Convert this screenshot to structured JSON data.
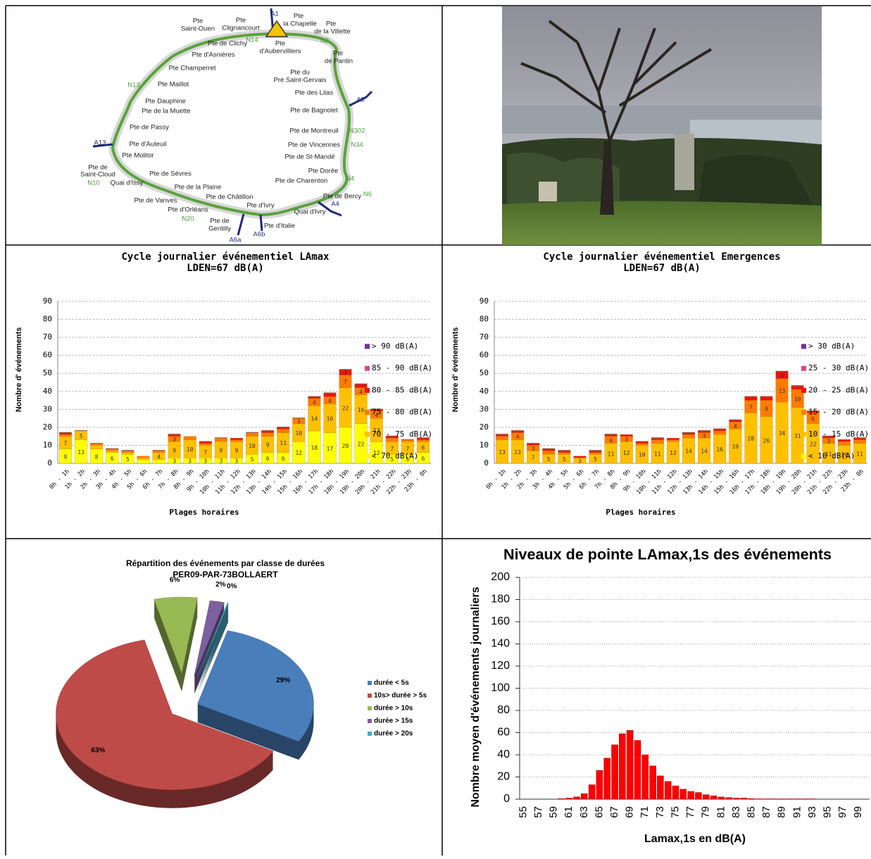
{
  "map": {
    "labels": [
      "Pte",
      "Saint-Ouen",
      "Pte",
      "Clignancourt",
      "A1",
      "Pte",
      "la Chapelle",
      "Pte",
      "de la Villette",
      "N14",
      "N2",
      "Pte de Clichy",
      "Pte",
      "d'Aubervilliers",
      "Pte",
      "de Pantin",
      "Pte d'Asnières",
      "Pte Champerret",
      "Pte du",
      "Pré Saint-Gervais",
      "N13",
      "Pte Maillot",
      "Pte des Lilas",
      "A3",
      "Pte Dauphine",
      "Pte de la Muette",
      "Pte de Bagnolet",
      "Pte de Passy",
      "Pte de Montreuil",
      "N302",
      "A13",
      "Pte d'Auteuil",
      "Pte de Vincennes",
      "N34",
      "Pte Molitor",
      "Pte de St-Mandé",
      "Pte de",
      "Saint-Cloud",
      "Pte de Sèvres",
      "Pte Dorée",
      "N10",
      "Quai d'Issy",
      "Pte de Charenton",
      "N4",
      "Pte de la Plaine",
      "Pte de Châtillon",
      "Pte de Bercy",
      "N6",
      "Pte de Vanves",
      "A4",
      "Pte d'Ivry",
      "Pte d'Orléans",
      "Quai d'Ivry",
      "N20",
      "Pte de",
      "Gentilly",
      "Pte d'Italie",
      "A6b",
      "A6a"
    ]
  },
  "chart_data": [
    {
      "type": "stacked-bar",
      "title": "Cycle journalier événementiel LAmax",
      "subtitle": "LDEN=67 dB(A)",
      "y_label": "Nombre d' événements",
      "x_label": "Plages horaires",
      "categories": [
        "0h - 1h",
        "1h - 2h",
        "2h - 3h",
        "3h - 4h",
        "4h - 5h",
        "5h - 6h",
        "6h - 7h",
        "7h - 8h",
        "8h - 9h",
        "9h - 10h",
        "10h - 11h",
        "11h - 12h",
        "12h - 13h",
        "13h - 14h",
        "14h - 15h",
        "15h - 16h",
        "16h - 17h",
        "17h - 18h",
        "18h - 19h",
        "19h - 20h",
        "20h - 21h",
        "21h - 22h",
        "22h - 23h",
        "23h - 0h"
      ],
      "series": [
        {
          "name": "< 70 dB(A)",
          "color": "#ffff00",
          "values": [
            8,
            13,
            8,
            6,
            5,
            2,
            2,
            3,
            3,
            3,
            3,
            3,
            5,
            6,
            6,
            12,
            18,
            17,
            20,
            22,
            12,
            5,
            5,
            6
          ]
        },
        {
          "name": "70 - 75 dB(A)",
          "color": "#ffc000",
          "values": [
            7,
            5,
            2,
            1,
            1,
            1,
            4,
            9,
            10,
            7,
            9,
            9,
            10,
            9,
            11,
            10,
            14,
            16,
            22,
            16,
            13,
            7,
            7,
            6
          ]
        },
        {
          "name": "75 - 80 dB(A)",
          "color": "#ff7a00",
          "values": [
            1,
            0,
            1,
            1,
            1,
            1,
            1,
            3,
            2,
            1,
            2,
            1,
            2,
            2,
            2,
            3,
            4,
            4,
            7,
            4,
            4,
            2,
            1,
            1
          ]
        },
        {
          "name": "80 - 85 dB(A)",
          "color": "#ee1111",
          "values": [
            1,
            0,
            0,
            0,
            0,
            0,
            0,
            1,
            0,
            1,
            0,
            1,
            0,
            1,
            1,
            0,
            1,
            2,
            3,
            2,
            1,
            1,
            0,
            1
          ]
        },
        {
          "name": "85 - 90 dB(A)",
          "color": "#e0408a",
          "values": [
            0,
            0,
            0,
            0,
            0,
            0,
            0,
            0,
            0,
            0,
            0,
            0,
            0,
            0,
            0,
            0,
            0,
            0,
            0,
            0,
            0,
            0,
            0,
            0
          ]
        },
        {
          "name": "> 90 dB(A)",
          "color": "#7030a0",
          "values": [
            0.3,
            0.3,
            0.3,
            0.3,
            0.3,
            0,
            0.3,
            0.3,
            0,
            0.3,
            0.3,
            0,
            0.3,
            0.3,
            0.3,
            0.3,
            0.3,
            0.3,
            0.3,
            0.3,
            0.3,
            0.3,
            0.3,
            0.3
          ]
        }
      ],
      "ylim": [
        0,
        90
      ],
      "yticks": [
        0,
        10,
        20,
        30,
        40,
        50,
        60,
        70,
        80,
        90
      ],
      "grid": true
    },
    {
      "type": "stacked-bar",
      "title": "Cycle journalier événementiel Emergences",
      "subtitle": "LDEN=67 dB(A)",
      "y_label": "Nombre d' événements",
      "x_label": "Plages horaires",
      "categories": [
        "0h - 1h",
        "1h - 2h",
        "2h - 3h",
        "3h - 4h",
        "4h - 5h",
        "5h - 6h",
        "6h - 7h",
        "7h - 8h",
        "8h - 9h",
        "9h - 10h",
        "10h - 11h",
        "11h - 12h",
        "12h - 13h",
        "13h - 14h",
        "14h - 15h",
        "15h - 16h",
        "16h - 17h",
        "17h - 18h",
        "18h - 19h",
        "19h - 20h",
        "20h - 21h",
        "21h - 22h",
        "22h - 23h",
        "23h - 0h"
      ],
      "series": [
        {
          "name": "< 10 dB(A)",
          "color": "#ffff00",
          "values": [
            0,
            0,
            0,
            0,
            0,
            0,
            0,
            0,
            0,
            0,
            0,
            0,
            0,
            0,
            0,
            0,
            0,
            0,
            0,
            0,
            0,
            0,
            0,
            0
          ]
        },
        {
          "name": "10 - 15 dB(A)",
          "color": "#ffc000",
          "values": [
            13,
            13,
            7,
            5,
            5,
            3,
            5,
            11,
            12,
            10,
            11,
            12,
            14,
            14,
            16,
            19,
            28,
            26,
            34,
            31,
            22,
            11,
            10,
            11
          ]
        },
        {
          "name": "15 - 20 dB(A)",
          "color": "#ff7a00",
          "values": [
            2,
            4,
            3,
            2,
            1,
            0,
            1,
            4,
            3,
            1,
            2,
            1,
            2,
            3,
            2,
            4,
            7,
            9,
            13,
            10,
            6,
            3,
            2,
            2
          ]
        },
        {
          "name": "20 - 25 dB(A)",
          "color": "#ee1111",
          "values": [
            1,
            1,
            1,
            1,
            1,
            1,
            1,
            1,
            1,
            1,
            1,
            1,
            1,
            1,
            1,
            1,
            2,
            2,
            4,
            2,
            1,
            1,
            1,
            1
          ]
        },
        {
          "name": "25 - 30 dB(A)",
          "color": "#e0408a",
          "values": [
            0,
            0,
            0,
            0,
            0,
            0,
            0,
            0,
            0,
            0,
            0,
            0,
            0,
            0,
            0,
            0,
            0,
            0,
            0,
            0,
            0,
            0,
            0,
            0
          ]
        },
        {
          "name": "> 30 dB(A)",
          "color": "#7030a0",
          "values": [
            0.3,
            0.3,
            0.3,
            0.3,
            0.3,
            0,
            0.3,
            0.3,
            0,
            0.3,
            0.3,
            0,
            0.3,
            0.3,
            0.3,
            0.3,
            0.3,
            0.3,
            0.3,
            0.3,
            0.3,
            0.3,
            0.3,
            0.3
          ]
        }
      ],
      "ylim": [
        0,
        90
      ],
      "yticks": [
        0,
        10,
        20,
        30,
        40,
        50,
        60,
        70,
        80,
        90
      ],
      "grid": true
    },
    {
      "type": "pie",
      "title": "Répartition des événements par classe de durées",
      "subtitle": "PER09-PAR-73BOLLAERT",
      "categories": [
        "durée < 5s",
        "10s> durée > 5s",
        "durée > 10s",
        "durée > 15s",
        "durée > 20s"
      ],
      "values": [
        29,
        63,
        6,
        2,
        0
      ],
      "value_labels": [
        "29%",
        "63%",
        "6%",
        "2%",
        "0%"
      ],
      "colors": [
        "#4a7ebb",
        "#be4b48",
        "#98b954",
        "#7d60a0",
        "#46aac5"
      ]
    },
    {
      "type": "bar",
      "title": "Niveaux de pointe LAmax,1s des événements",
      "y_label": "Nombre moyen d'événements journaliers",
      "x_label": "Lamax,1s en dB(A)",
      "color": "#ff0000",
      "categories": [
        "55",
        null,
        "57",
        null,
        "59",
        null,
        "61",
        null,
        "63",
        null,
        "65",
        null,
        "67",
        null,
        "69",
        null,
        "71",
        null,
        "73",
        null,
        "75",
        null,
        "77",
        null,
        "79",
        null,
        "81",
        null,
        "83",
        null,
        "85",
        null,
        "87",
        null,
        "89",
        null,
        "91",
        null,
        "93",
        null,
        "95",
        null,
        "97",
        null,
        "99",
        null
      ],
      "values": [
        0,
        0,
        0,
        0,
        0,
        0.5,
        1,
        2,
        5,
        13,
        26,
        37,
        49,
        59,
        62,
        53,
        40,
        30,
        21,
        16,
        12,
        9,
        7,
        6,
        4,
        3,
        2,
        1.5,
        1,
        1,
        0.5,
        0.3,
        0.3,
        0.3,
        0.3,
        0.3,
        0.3,
        0.3,
        0.3,
        0,
        0,
        0,
        0,
        0,
        0,
        0
      ],
      "ylim": [
        0,
        200
      ],
      "yticks": [
        0,
        20,
        40,
        60,
        80,
        100,
        120,
        140,
        160,
        180,
        200
      ],
      "grid": true
    }
  ]
}
